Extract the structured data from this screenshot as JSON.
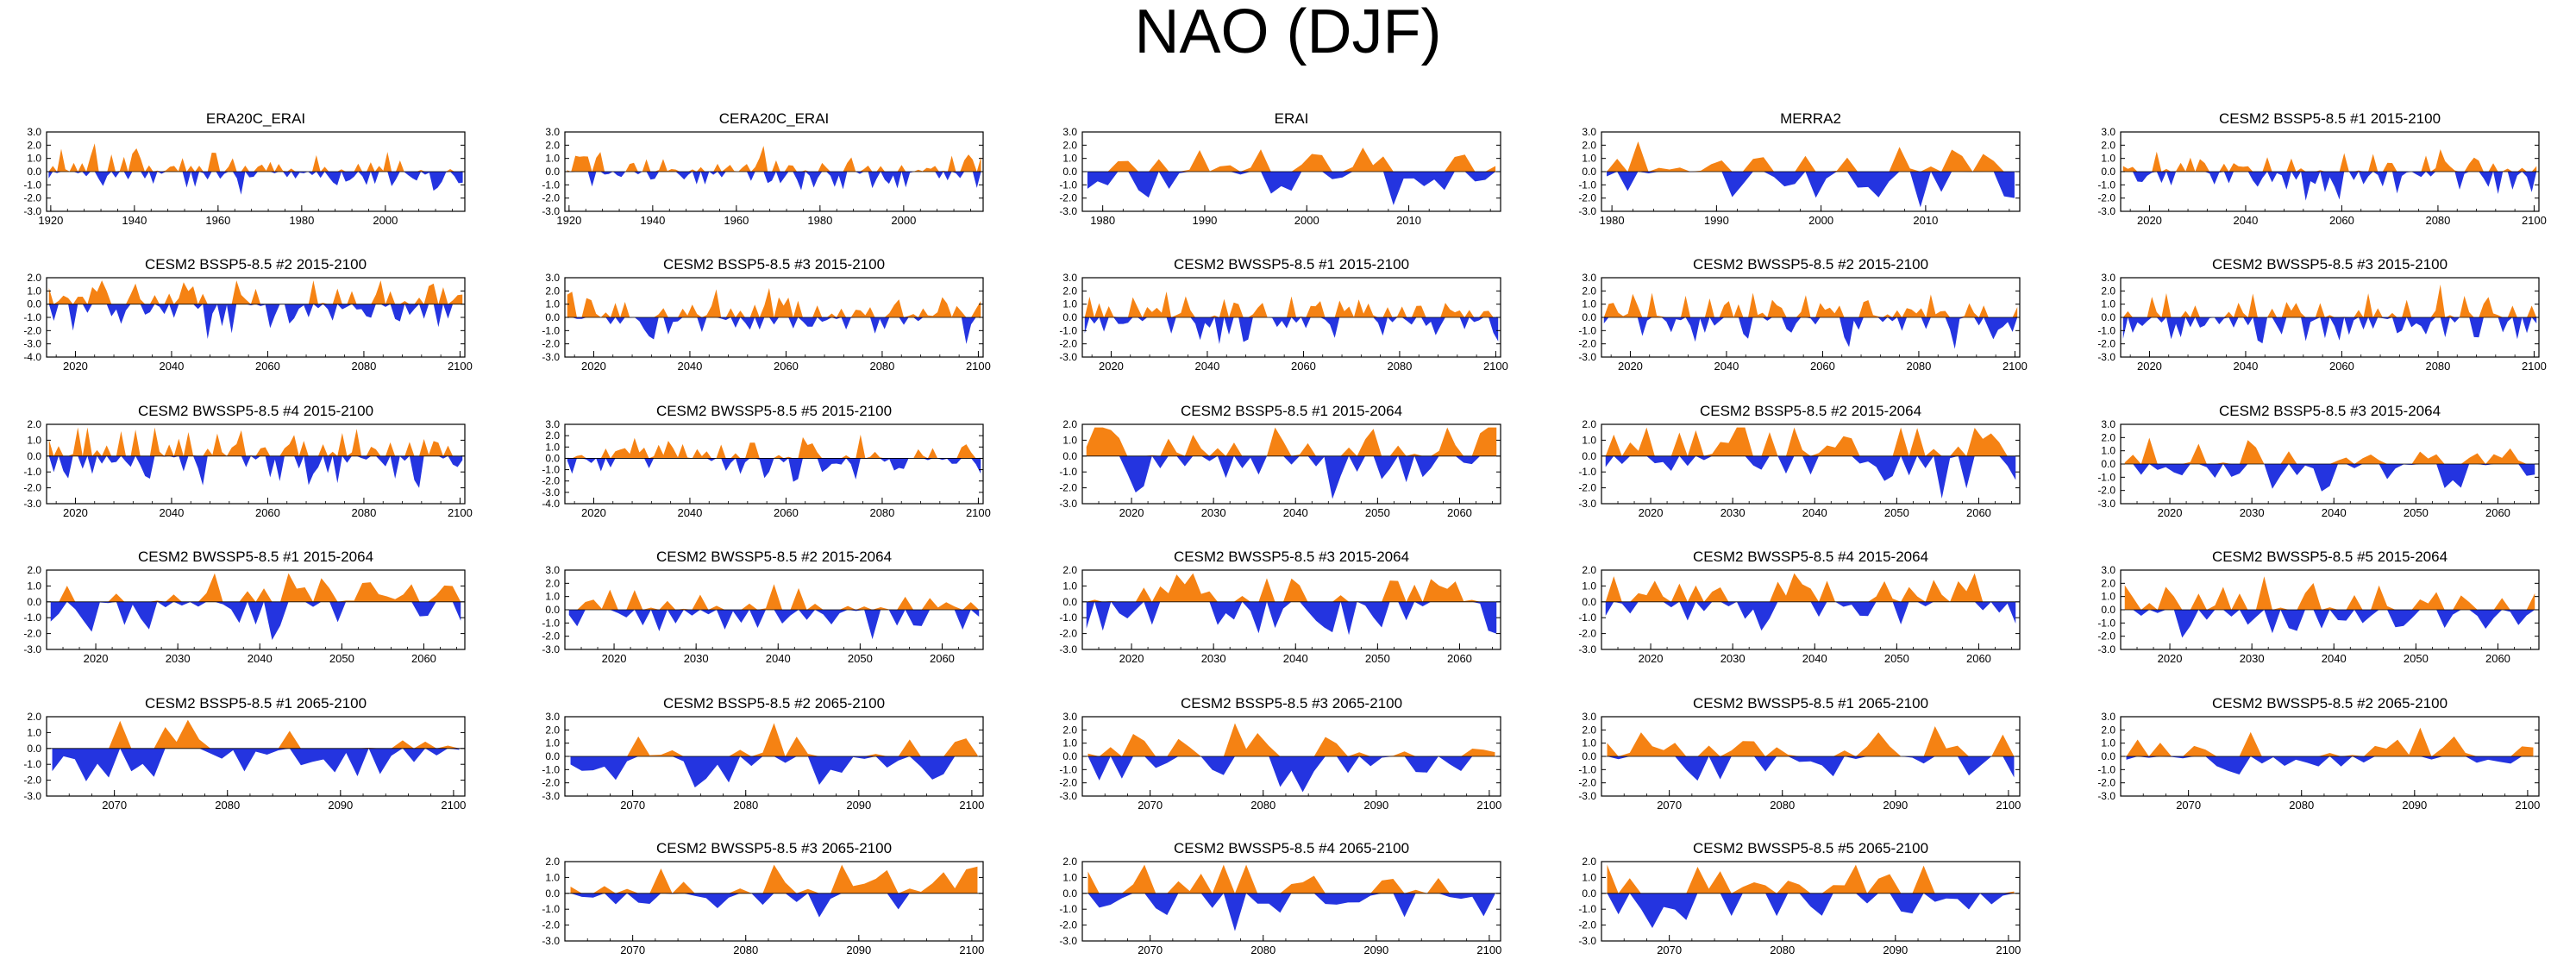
{
  "title": "NAO (DJF)",
  "colors": {
    "positive": "#f58213",
    "negative": "#2434e0",
    "axis": "#000000"
  },
  "chart_data": [
    {
      "type": "area",
      "title": "ERA20C_ERAI",
      "xlim": [
        1919,
        2019
      ],
      "ylim": [
        -3,
        3
      ],
      "yticks": [
        "3.0",
        "2.0",
        "1.0",
        "0.0",
        "-1.0",
        "-2.0",
        "-3.0"
      ],
      "xticks": [
        1920,
        1940,
        1960,
        1980,
        2000
      ],
      "seed": 11,
      "amp": 1.0,
      "step": 1
    },
    {
      "type": "area",
      "title": "CERA20C_ERAI",
      "xlim": [
        1919,
        2019
      ],
      "ylim": [
        -3,
        3
      ],
      "yticks": [
        "3.0",
        "2.0",
        "1.0",
        "0.0",
        "-1.0",
        "-2.0",
        "-3.0"
      ],
      "xticks": [
        1920,
        1940,
        1960,
        1980,
        2000
      ],
      "seed": 12,
      "amp": 1.0,
      "step": 1
    },
    {
      "type": "area",
      "title": "ERAI",
      "xlim": [
        1978,
        2019
      ],
      "ylim": [
        -3,
        3
      ],
      "yticks": [
        "3.0",
        "2.0",
        "1.0",
        "0.0",
        "-1.0",
        "-2.0",
        "-3.0"
      ],
      "xticks": [
        1980,
        1990,
        2000,
        2010
      ],
      "seed": 13,
      "amp": 1.5,
      "step": 1
    },
    {
      "type": "area",
      "title": "MERRA2",
      "xlim": [
        1979,
        2019
      ],
      "ylim": [
        -3,
        3
      ],
      "yticks": [
        "3.0",
        "2.0",
        "1.0",
        "0.0",
        "-1.0",
        "-2.0",
        "-3.0"
      ],
      "xticks": [
        1980,
        1990,
        2000,
        2010
      ],
      "seed": 14,
      "amp": 1.5,
      "step": 1
    },
    {
      "type": "area",
      "title": "CESM2 BSSP5-8.5 #1 2015-2100",
      "xlim": [
        2014,
        2101
      ],
      "ylim": [
        -3,
        3
      ],
      "yticks": [
        "3.0",
        "2.0",
        "1.0",
        "0.0",
        "-1.0",
        "-2.0",
        "-3.0"
      ],
      "xticks": [
        2020,
        2040,
        2060,
        2080,
        2100
      ],
      "seed": 15,
      "amp": 1.1,
      "step": 1
    },
    {
      "type": "area",
      "title": "CESM2 BSSP5-8.5 #2 2015-2100",
      "xlim": [
        2014,
        2101
      ],
      "ylim": [
        -4,
        2
      ],
      "yticks": [
        "2.0",
        "1.0",
        "0.0",
        "-1.0",
        "-2.0",
        "-3.0",
        "-4.0"
      ],
      "xticks": [
        2020,
        2040,
        2060,
        2080,
        2100
      ],
      "seed": 21,
      "amp": 1.3,
      "step": 1
    },
    {
      "type": "area",
      "title": "CESM2 BSSP5-8.5 #3 2015-2100",
      "xlim": [
        2014,
        2101
      ],
      "ylim": [
        -3,
        3
      ],
      "yticks": [
        "3.0",
        "2.0",
        "1.0",
        "0.0",
        "-1.0",
        "-2.0",
        "-3.0"
      ],
      "xticks": [
        2020,
        2040,
        2060,
        2080,
        2100
      ],
      "seed": 22,
      "amp": 1.1,
      "step": 1
    },
    {
      "type": "area",
      "title": "CESM2 BWSSP5-8.5 #1 2015-2100",
      "xlim": [
        2014,
        2101
      ],
      "ylim": [
        -3,
        3
      ],
      "yticks": [
        "3.0",
        "2.0",
        "1.0",
        "0.0",
        "-1.0",
        "-2.0",
        "-3.0"
      ],
      "xticks": [
        2020,
        2040,
        2060,
        2080,
        2100
      ],
      "seed": 23,
      "amp": 1.2,
      "step": 1
    },
    {
      "type": "area",
      "title": "CESM2 BWSSP5-8.5 #2 2015-2100",
      "xlim": [
        2014,
        2101
      ],
      "ylim": [
        -3,
        3
      ],
      "yticks": [
        "3.0",
        "2.0",
        "1.0",
        "0.0",
        "-1.0",
        "-2.0",
        "-3.0"
      ],
      "xticks": [
        2020,
        2040,
        2060,
        2080,
        2100
      ],
      "seed": 24,
      "amp": 1.2,
      "step": 1
    },
    {
      "type": "area",
      "title": "CESM2 BWSSP5-8.5 #3 2015-2100",
      "xlim": [
        2014,
        2101
      ],
      "ylim": [
        -3,
        3
      ],
      "yticks": [
        "3.0",
        "2.0",
        "1.0",
        "0.0",
        "-1.0",
        "-2.0",
        "-3.0"
      ],
      "xticks": [
        2020,
        2040,
        2060,
        2080,
        2100
      ],
      "seed": 25,
      "amp": 1.2,
      "step": 1
    },
    {
      "type": "area",
      "title": "CESM2 BWSSP5-8.5 #4 2015-2100",
      "xlim": [
        2014,
        2101
      ],
      "ylim": [
        -3,
        2
      ],
      "yticks": [
        "2.0",
        "1.0",
        "0.0",
        "-1.0",
        "-2.0",
        "-3.0"
      ],
      "xticks": [
        2020,
        2040,
        2060,
        2080,
        2100
      ],
      "seed": 31,
      "amp": 1.3,
      "step": 1
    },
    {
      "type": "area",
      "title": "CESM2 BWSSP5-8.5 #5 2015-2100",
      "xlim": [
        2014,
        2101
      ],
      "ylim": [
        -4,
        3
      ],
      "yticks": [
        "3.0",
        "2.0",
        "1.0",
        "0.0",
        "-1.0",
        "-2.0",
        "-3.0",
        "-4.0"
      ],
      "xticks": [
        2020,
        2040,
        2060,
        2080,
        2100
      ],
      "seed": 32,
      "amp": 1.1,
      "step": 1
    },
    {
      "type": "area",
      "title": "CESM2 BSSP5-8.5 #1 2015-2064",
      "xlim": [
        2014,
        2065
      ],
      "ylim": [
        -3,
        2
      ],
      "yticks": [
        "2.0",
        "1.0",
        "0.0",
        "-1.0",
        "-2.0",
        "-3.0"
      ],
      "xticks": [
        2020,
        2030,
        2040,
        2050,
        2060
      ],
      "seed": 33,
      "amp": 1.3,
      "step": 1
    },
    {
      "type": "area",
      "title": "CESM2 BSSP5-8.5 #2 2015-2064",
      "xlim": [
        2014,
        2065
      ],
      "ylim": [
        -3,
        2
      ],
      "yticks": [
        "2.0",
        "1.0",
        "0.0",
        "-1.0",
        "-2.0",
        "-3.0"
      ],
      "xticks": [
        2020,
        2030,
        2040,
        2050,
        2060
      ],
      "seed": 34,
      "amp": 1.3,
      "step": 1
    },
    {
      "type": "area",
      "title": "CESM2 BSSP5-8.5 #3 2015-2064",
      "xlim": [
        2014,
        2065
      ],
      "ylim": [
        -3,
        3
      ],
      "yticks": [
        "3.0",
        "2.0",
        "1.0",
        "0.0",
        "-1.0",
        "-2.0",
        "-3.0"
      ],
      "xticks": [
        2020,
        2030,
        2040,
        2050,
        2060
      ],
      "seed": 35,
      "amp": 1.2,
      "step": 1
    },
    {
      "type": "area",
      "title": "CESM2 BWSSP5-8.5 #1 2015-2064",
      "xlim": [
        2014,
        2065
      ],
      "ylim": [
        -3,
        2
      ],
      "yticks": [
        "2.0",
        "1.0",
        "0.0",
        "-1.0",
        "-2.0",
        "-3.0"
      ],
      "xticks": [
        2020,
        2030,
        2040,
        2050,
        2060
      ],
      "seed": 41,
      "amp": 1.3,
      "step": 1
    },
    {
      "type": "area",
      "title": "CESM2 BWSSP5-8.5 #2 2015-2064",
      "xlim": [
        2014,
        2065
      ],
      "ylim": [
        -3,
        3
      ],
      "yticks": [
        "3.0",
        "2.0",
        "1.0",
        "0.0",
        "-1.0",
        "-2.0",
        "-3.0"
      ],
      "xticks": [
        2020,
        2030,
        2040,
        2050,
        2060
      ],
      "seed": 42,
      "amp": 1.2,
      "step": 1
    },
    {
      "type": "area",
      "title": "CESM2 BWSSP5-8.5 #3 2015-2064",
      "xlim": [
        2014,
        2065
      ],
      "ylim": [
        -3,
        2
      ],
      "yticks": [
        "2.0",
        "1.0",
        "0.0",
        "-1.0",
        "-2.0",
        "-3.0"
      ],
      "xticks": [
        2020,
        2030,
        2040,
        2050,
        2060
      ],
      "seed": 43,
      "amp": 1.3,
      "step": 1
    },
    {
      "type": "area",
      "title": "CESM2 BWSSP5-8.5 #4 2015-2064",
      "xlim": [
        2014,
        2065
      ],
      "ylim": [
        -3,
        2
      ],
      "yticks": [
        "2.0",
        "1.0",
        "0.0",
        "-1.0",
        "-2.0",
        "-3.0"
      ],
      "xticks": [
        2020,
        2030,
        2040,
        2050,
        2060
      ],
      "seed": 44,
      "amp": 1.3,
      "step": 1
    },
    {
      "type": "area",
      "title": "CESM2 BWSSP5-8.5 #5 2015-2064",
      "xlim": [
        2014,
        2065
      ],
      "ylim": [
        -3,
        3
      ],
      "yticks": [
        "3.0",
        "2.0",
        "1.0",
        "0.0",
        "-1.0",
        "-2.0",
        "-3.0"
      ],
      "xticks": [
        2020,
        2030,
        2040,
        2050,
        2060
      ],
      "seed": 45,
      "amp": 1.2,
      "step": 1
    },
    {
      "type": "area",
      "title": "CESM2 BSSP5-8.5 #1 2065-2100",
      "xlim": [
        2064,
        2101
      ],
      "ylim": [
        -3,
        2
      ],
      "yticks": [
        "2.0",
        "1.0",
        "0.0",
        "-1.0",
        "-2.0",
        "-3.0"
      ],
      "xticks": [
        2070,
        2080,
        2090,
        2100
      ],
      "seed": 51,
      "amp": 1.3,
      "step": 1
    },
    {
      "type": "area",
      "title": "CESM2 BSSP5-8.5 #2 2065-2100",
      "xlim": [
        2064,
        2101
      ],
      "ylim": [
        -3,
        3
      ],
      "yticks": [
        "3.0",
        "2.0",
        "1.0",
        "0.0",
        "-1.0",
        "-2.0",
        "-3.0"
      ],
      "xticks": [
        2070,
        2080,
        2090,
        2100
      ],
      "seed": 52,
      "amp": 1.3,
      "step": 1
    },
    {
      "type": "area",
      "title": "CESM2 BSSP5-8.5 #3 2065-2100",
      "xlim": [
        2064,
        2101
      ],
      "ylim": [
        -3,
        3
      ],
      "yticks": [
        "3.0",
        "2.0",
        "1.0",
        "0.0",
        "-1.0",
        "-2.0",
        "-3.0"
      ],
      "xticks": [
        2070,
        2080,
        2090,
        2100
      ],
      "seed": 53,
      "amp": 1.4,
      "step": 1
    },
    {
      "type": "area",
      "title": "CESM2 BWSSP5-8.5 #1 2065-2100",
      "xlim": [
        2064,
        2101
      ],
      "ylim": [
        -3,
        3
      ],
      "yticks": [
        "3.0",
        "2.0",
        "1.0",
        "0.0",
        "-1.0",
        "-2.0",
        "-3.0"
      ],
      "xticks": [
        2070,
        2080,
        2090,
        2100
      ],
      "seed": 54,
      "amp": 1.3,
      "step": 1
    },
    {
      "type": "area",
      "title": "CESM2 BWSSP5-8.5 #2 2065-2100",
      "xlim": [
        2064,
        2101
      ],
      "ylim": [
        -3,
        3
      ],
      "yticks": [
        "3.0",
        "2.0",
        "1.0",
        "0.0",
        "-1.0",
        "-2.0",
        "-3.0"
      ],
      "xticks": [
        2070,
        2080,
        2090,
        2100
      ],
      "seed": 55,
      "amp": 1.3,
      "step": 1
    },
    {
      "type": "area",
      "title": "CESM2 BWSSP5-8.5 #3 2065-2100",
      "xlim": [
        2064,
        2101
      ],
      "ylim": [
        -3,
        2
      ],
      "yticks": [
        "2.0",
        "1.0",
        "0.0",
        "-1.0",
        "-2.0",
        "-3.0"
      ],
      "xticks": [
        2070,
        2080,
        2090,
        2100
      ],
      "seed": 61,
      "amp": 1.2,
      "step": 1
    },
    {
      "type": "area",
      "title": "CESM2 BWSSP5-8.5 #4 2065-2100",
      "xlim": [
        2064,
        2101
      ],
      "ylim": [
        -3,
        2
      ],
      "yticks": [
        "2.0",
        "1.0",
        "0.0",
        "-1.0",
        "-2.0",
        "-3.0"
      ],
      "xticks": [
        2070,
        2080,
        2090,
        2100
      ],
      "seed": 62,
      "amp": 1.4,
      "step": 1
    },
    {
      "type": "area",
      "title": "CESM2 BWSSP5-8.5 #5 2065-2100",
      "xlim": [
        2064,
        2101
      ],
      "ylim": [
        -3,
        2
      ],
      "yticks": [
        "2.0",
        "1.0",
        "0.0",
        "-1.0",
        "-2.0",
        "-3.0"
      ],
      "xticks": [
        2070,
        2080,
        2090,
        2100
      ],
      "seed": 63,
      "amp": 1.2,
      "step": 1
    }
  ]
}
